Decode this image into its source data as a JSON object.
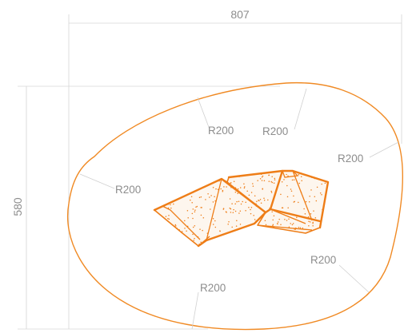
{
  "dimensions": {
    "width_label": "807",
    "height_label": "580"
  },
  "radius_labels": [
    "R200",
    "R200",
    "R200",
    "R200",
    "R200",
    "R200"
  ],
  "colors": {
    "outline": "#f08a24",
    "dimension": "#8d8d8d",
    "dimension_line": "#d6d6d6"
  }
}
